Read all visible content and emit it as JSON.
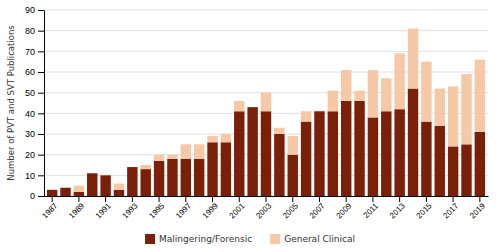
{
  "chart_data": {
    "type": "bar",
    "stacked": true,
    "categories": [
      "1987",
      null,
      "1989",
      null,
      "1991",
      null,
      "1993",
      null,
      "1995",
      null,
      "1997",
      null,
      "1999",
      null,
      "2001",
      null,
      "2003",
      null,
      "2005",
      null,
      "2007",
      null,
      "2009",
      null,
      "2011",
      null,
      "2013",
      null,
      "2015",
      null,
      "2017",
      null,
      "2019"
    ],
    "series": [
      {
        "name": "Malingering/Forensic",
        "color": "#7B2008",
        "values": [
          3,
          4,
          2,
          11,
          10,
          3,
          14,
          13,
          17,
          18,
          18,
          18,
          26,
          26,
          41,
          43,
          41,
          30,
          20,
          36,
          41,
          41,
          46,
          46,
          38,
          41,
          42,
          52,
          36,
          34,
          24,
          25,
          31
        ]
      },
      {
        "name": "General Clinical",
        "color": "#F5C8A8",
        "values": [
          0,
          0,
          3,
          0,
          0,
          3,
          0,
          2,
          3,
          2,
          7,
          7,
          3,
          4,
          5,
          0,
          9,
          3,
          9,
          5,
          0,
          10,
          15,
          5,
          23,
          16,
          27,
          29,
          29,
          18,
          29,
          34,
          35
        ]
      }
    ],
    "y_label": "Number of PVT and SVT Publications",
    "ylim": [
      0,
      90
    ],
    "yticks": [
      0,
      10,
      20,
      30,
      40,
      50,
      60,
      70,
      80,
      90
    ],
    "grid": true,
    "legend": "bottom"
  }
}
